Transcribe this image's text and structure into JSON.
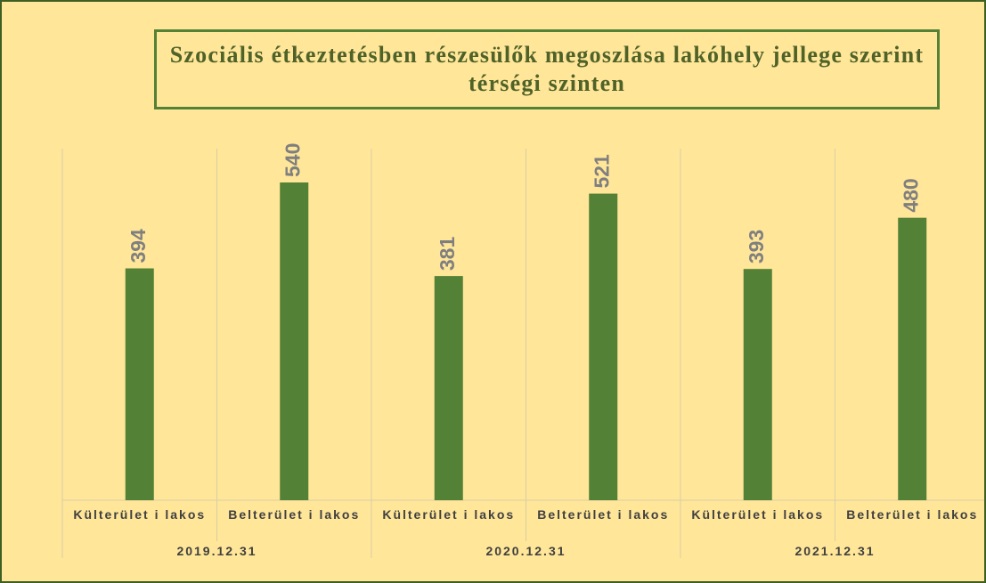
{
  "chart_data": {
    "type": "bar",
    "title": "Szociális étkeztetésben részesülők megoszlása lakóhely jellege szerint térségi szinten",
    "categories": [
      "Külterület i lakos",
      "Belterület i lakos",
      "Külterület i lakos",
      "Belterület i lakos",
      "Külterület i lakos",
      "Belterület i lakos"
    ],
    "groups": [
      "2019.12.31",
      "2020.12.31",
      "2021.12.31"
    ],
    "values": [
      394,
      540,
      381,
      521,
      393,
      480
    ],
    "color": "#538135"
  }
}
